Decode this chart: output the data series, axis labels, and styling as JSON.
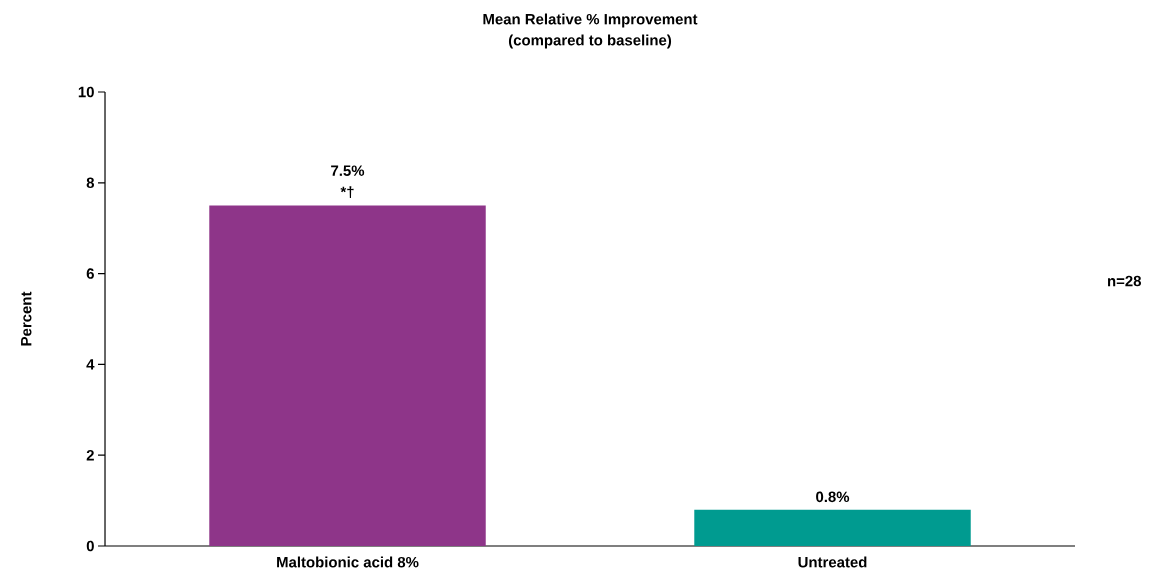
{
  "chart_data": {
    "type": "bar",
    "title": "Mean Relative % Improvement",
    "subtitle": "(compared to baseline)",
    "ylabel": "Percent",
    "categories": [
      "Maltobionic acid 8%",
      "Untreated"
    ],
    "values": [
      7.5,
      0.8
    ],
    "colors": [
      "#8e3589",
      "#009b90"
    ],
    "value_labels": [
      "7.5%",
      "0.8%"
    ],
    "annotations": [
      {
        "text": "*†",
        "x": "Maltobionic acid 8%",
        "y": 7.5
      },
      "n=28"
    ],
    "ylim": [
      0,
      10
    ],
    "yticks": [
      0,
      2,
      4,
      6,
      8,
      10
    ],
    "grid": false
  }
}
